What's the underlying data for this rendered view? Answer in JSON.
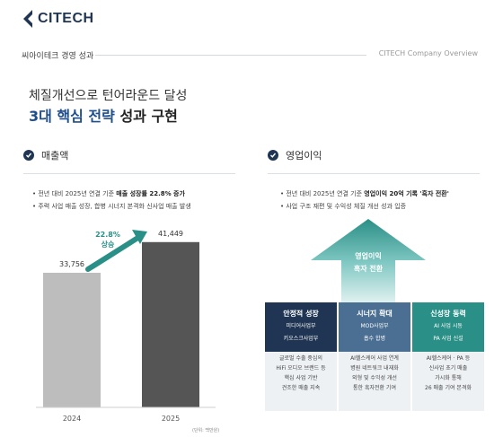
{
  "logo": {
    "text": "CITECH",
    "color": "#1f3553"
  },
  "header": {
    "left": "씨아이테크 경영 성과",
    "right": "CITECH Company Overview"
  },
  "title": {
    "sub": "체질개선으로 턴어라운드 달성",
    "main_accent": "3대 핵심 전략",
    "main_rest": " 성과 구현"
  },
  "revenue": {
    "heading": "매출액",
    "bullets": [
      {
        "pre": "전년 대비 2025년 연결 기준 ",
        "bold": "매출 성장률 22.8% 증가"
      },
      {
        "pre": "주력 사업 매출 성장, 합병 시너지 본격화 신사업 매출 발생",
        "bold": ""
      }
    ],
    "growth_pct": "22.8%",
    "growth_word": "상승",
    "unit": "(단위: 백만원)"
  },
  "chart_data": {
    "type": "bar",
    "categories": [
      "2024",
      "2025"
    ],
    "values": [
      33756,
      41449
    ],
    "value_labels": [
      "33,756",
      "41,449"
    ],
    "colors": [
      "#bdbdbd",
      "#555555"
    ],
    "ylim": [
      0,
      45000
    ]
  },
  "op": {
    "heading": "영업이익",
    "bullets": [
      {
        "pre": "전년 대비 2025년 연결 기준 ",
        "bold": "영업이익 20억 기록 '흑자 전환'"
      },
      {
        "pre": "사업 구조 재편 및 수익성 체질 개선 성과 입증",
        "bold": ""
      }
    ],
    "arrow_line1": "영업이익",
    "arrow_line2": "흑자 전환",
    "columns": [
      {
        "title": "안정적 성장",
        "lines": [
          "미디어사업부",
          "키오스크사업부"
        ],
        "body": [
          "글로벌 수출 중심의",
          "HiFi 오디오 브랜드 등",
          "핵심 사업 기반",
          "견조한 매출 지속"
        ],
        "color": "#1f3553"
      },
      {
        "title": "시너지 확대",
        "lines": [
          "MOD사업부",
          "흡수 합병"
        ],
        "body": [
          "AI헬스케어 사업 연계",
          "병원 네트워크 내재화",
          "외형 및 수익성 개선",
          "통한 흑자전환 기여"
        ],
        "color": "#4b6f93"
      },
      {
        "title": "신성장 동력",
        "lines": [
          "AI 사업 시동",
          "PA 사업 신설"
        ],
        "body": [
          "AI헬스케어 · PA 등",
          "신사업 초기 매출",
          "가시화 통해",
          "26 매출 기여 본격화"
        ],
        "color": "#2a8f86"
      }
    ]
  }
}
